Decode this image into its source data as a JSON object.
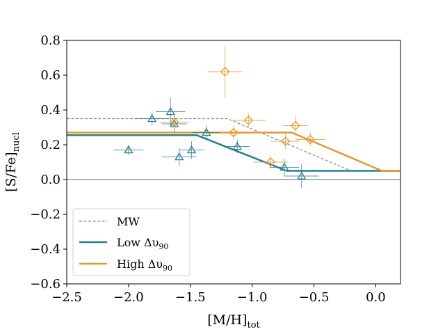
{
  "chart_data": {
    "type": "scatter",
    "xlabel": "[M/H]",
    "xlabel_sub": "tot",
    "ylabel": "[S/Fe]",
    "ylabel_sub": "nucl",
    "xlim": [
      -2.5,
      0.2
    ],
    "ylim": [
      -0.6,
      0.8
    ],
    "x_ticks": [
      -2.5,
      -2.0,
      -1.5,
      -1.0,
      -0.5,
      0.0
    ],
    "x_tick_labels": [
      "−2.5",
      "−2.0",
      "−1.5",
      "−1.0",
      "−0.5",
      "0.0"
    ],
    "y_ticks": [
      -0.6,
      -0.4,
      -0.2,
      0.0,
      0.2,
      0.4,
      0.6,
      0.8
    ],
    "y_tick_labels": [
      "−0.6",
      "−0.4",
      "−0.2",
      "0.0",
      "0.2",
      "0.4",
      "0.6",
      "0.8"
    ],
    "reference_line_y": 0.0,
    "lines": [
      {
        "name": "MW",
        "style": "dashed",
        "color": "#888888",
        "x": [
          -2.5,
          -1.2,
          -0.2
        ],
        "y": [
          0.35,
          0.35,
          0.05
        ]
      },
      {
        "name": "Low",
        "style": "solid",
        "color": "#2a7f8e",
        "x": [
          -2.5,
          -1.45,
          -0.72,
          0.2
        ],
        "y": [
          0.255,
          0.255,
          0.05,
          0.05
        ]
      },
      {
        "name": "High",
        "style": "solid",
        "color": "#e19a2f",
        "x": [
          -2.5,
          -0.68,
          0.05,
          0.2
        ],
        "y": [
          0.27,
          0.27,
          0.05,
          0.05
        ]
      }
    ],
    "series": [
      {
        "name": "Low",
        "marker": "triangle",
        "color": "#2a7f8e",
        "points": [
          {
            "x": -2.0,
            "y": 0.17,
            "xerr": 0.12,
            "yerr": 0.03
          },
          {
            "x": -1.81,
            "y": 0.35,
            "xerr": 0.14,
            "yerr": 0.04
          },
          {
            "x": -1.66,
            "y": 0.39,
            "xerr": 0.12,
            "yerr": 0.08
          },
          {
            "x": -1.63,
            "y": 0.32,
            "xerr": 0.1,
            "yerr": 0.05
          },
          {
            "x": -1.59,
            "y": 0.13,
            "xerr": 0.14,
            "yerr": 0.05
          },
          {
            "x": -1.49,
            "y": 0.17,
            "xerr": 0.1,
            "yerr": 0.05
          },
          {
            "x": -1.37,
            "y": 0.27,
            "xerr": 0.12,
            "yerr": 0.04
          },
          {
            "x": -1.12,
            "y": 0.19,
            "xerr": 0.1,
            "yerr": 0.04
          },
          {
            "x": -0.74,
            "y": 0.07,
            "xerr": 0.12,
            "yerr": 0.05
          },
          {
            "x": -0.6,
            "y": 0.02,
            "xerr": 0.14,
            "yerr": 0.07
          }
        ]
      },
      {
        "name": "High",
        "marker": "diamond",
        "color": "#e19a2f",
        "points": [
          {
            "x": -1.22,
            "y": 0.62,
            "xerr": 0.14,
            "yerr": 0.15
          },
          {
            "x": -1.63,
            "y": 0.33,
            "xerr": 0.12,
            "yerr": 0.04
          },
          {
            "x": -1.03,
            "y": 0.34,
            "xerr": 0.14,
            "yerr": 0.04
          },
          {
            "x": -1.15,
            "y": 0.27,
            "xerr": 0.12,
            "yerr": 0.04
          },
          {
            "x": -0.65,
            "y": 0.31,
            "xerr": 0.1,
            "yerr": 0.06
          },
          {
            "x": -0.73,
            "y": 0.22,
            "xerr": 0.12,
            "yerr": 0.05
          },
          {
            "x": -0.53,
            "y": 0.23,
            "xerr": 0.12,
            "yerr": 0.04
          },
          {
            "x": -0.85,
            "y": 0.1,
            "xerr": 0.14,
            "yerr": 0.04
          }
        ]
      }
    ],
    "legend": {
      "placement": "lower-left",
      "entries": [
        {
          "label": "MW",
          "sub": "",
          "style": "dashed",
          "color": "#888888"
        },
        {
          "label": "Low Δυ",
          "sub": "90",
          "style": "solid",
          "color": "#2a7f8e"
        },
        {
          "label": "High Δυ",
          "sub": "90",
          "style": "solid",
          "color": "#e19a2f"
        }
      ]
    }
  }
}
